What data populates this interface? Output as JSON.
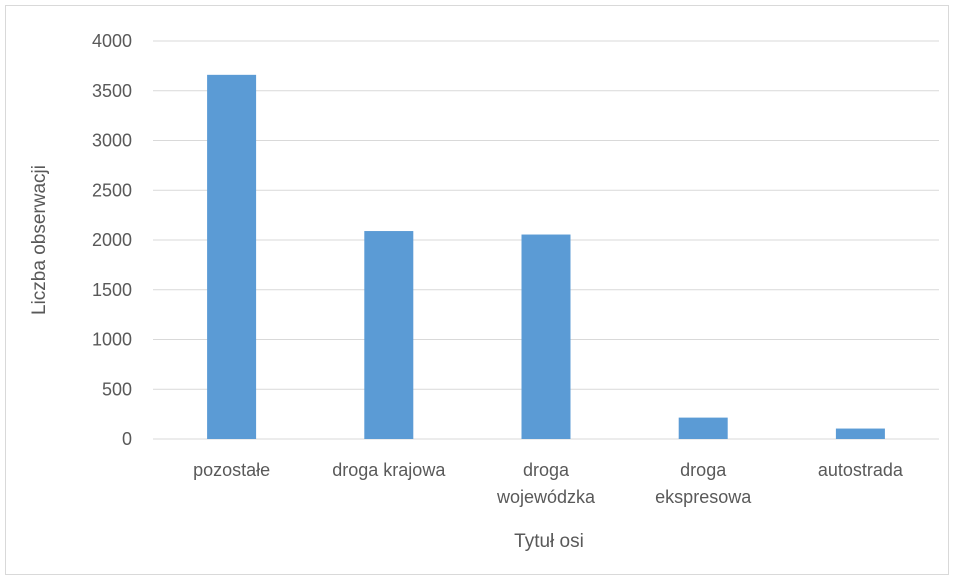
{
  "chart_data": {
    "type": "bar",
    "title": "",
    "xlabel": "Tytuł osi",
    "ylabel": "Liczba obserwacji",
    "categories": [
      [
        "pozostałe"
      ],
      [
        "droga krajowa"
      ],
      [
        "droga",
        "wojewódzka"
      ],
      [
        "droga",
        "ekspresowa"
      ],
      [
        "autostrada"
      ]
    ],
    "values": [
      3660,
      2090,
      2055,
      215,
      105
    ],
    "ylim": [
      0,
      4000
    ],
    "yticks": [
      "0",
      "500",
      "1000",
      "1500",
      "2000",
      "2500",
      "3000",
      "3500",
      "4000"
    ],
    "grid": true,
    "legend": "none",
    "colors": {
      "bar": "#5b9bd5",
      "grid": "#d9d9d9",
      "text": "#595959"
    }
  }
}
